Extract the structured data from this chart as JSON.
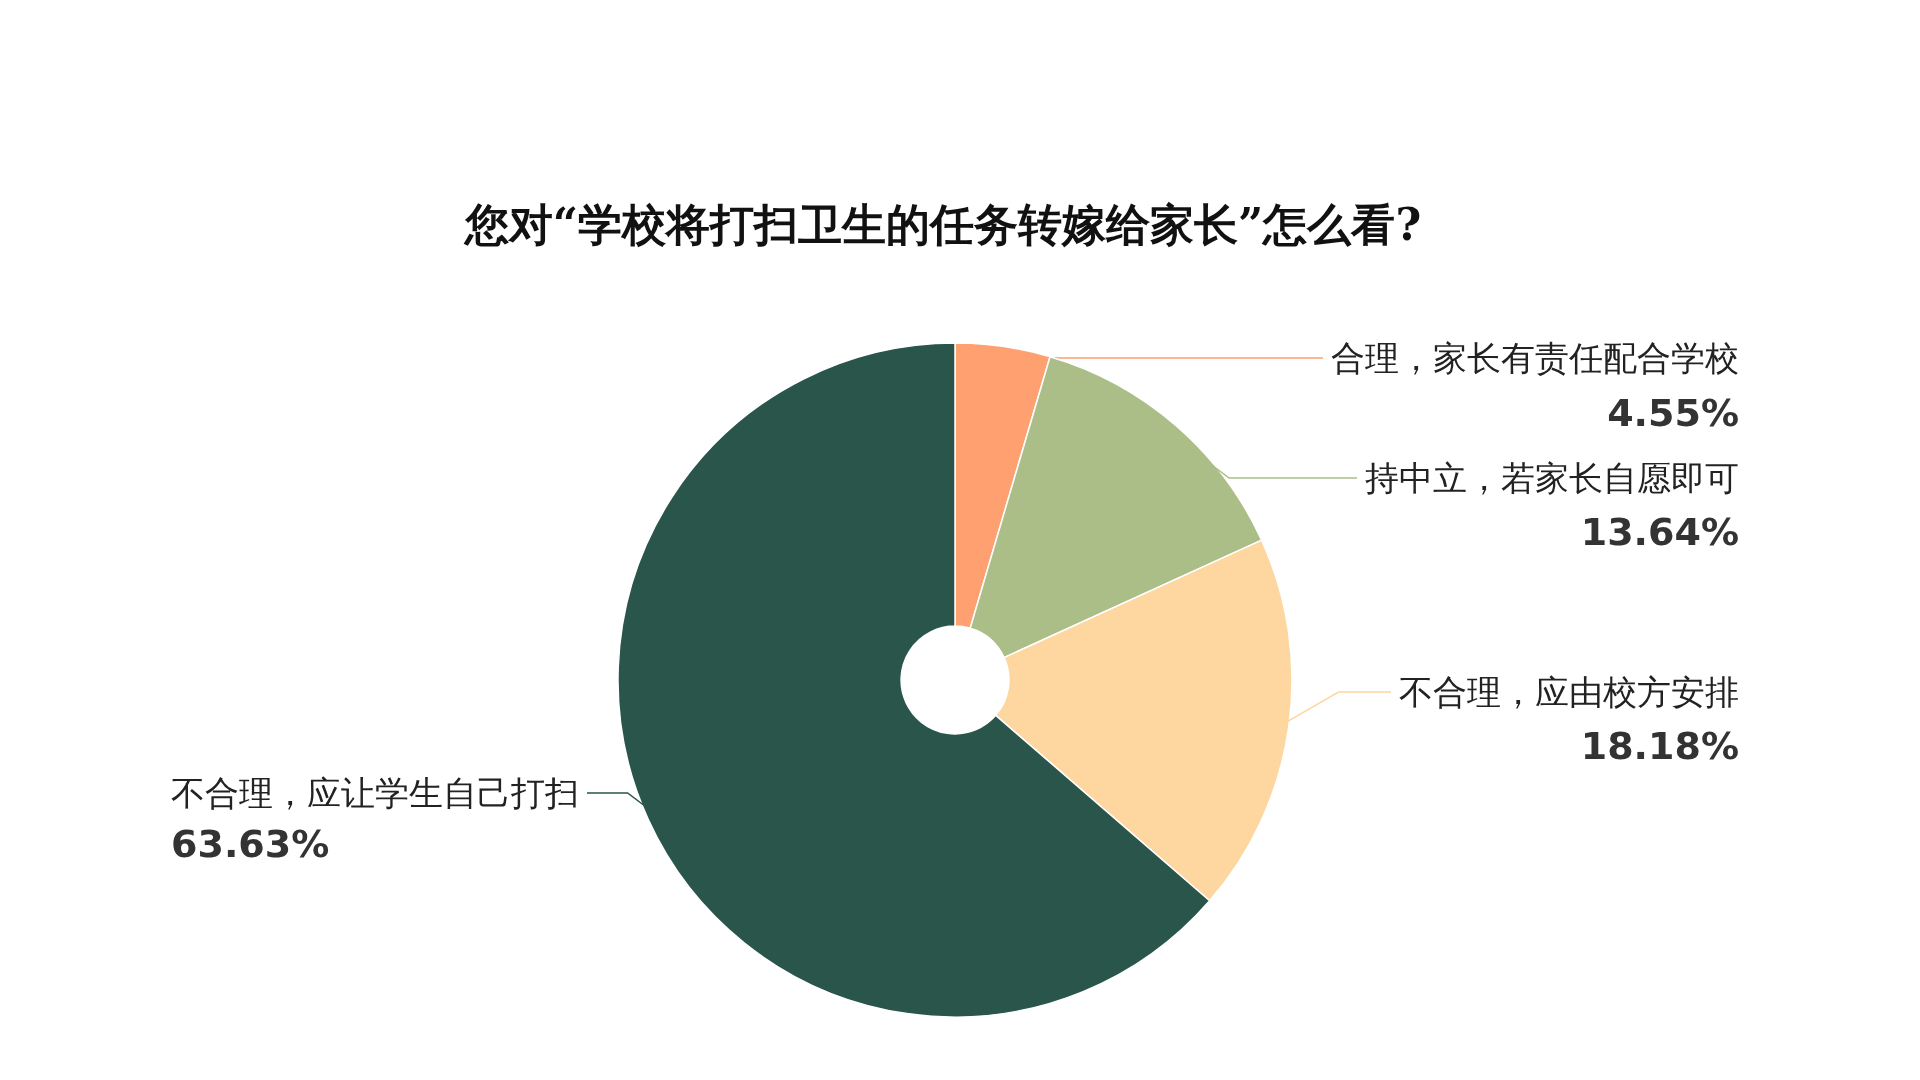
{
  "chart_data": {
    "type": "donut",
    "title": "您对“学校将打扫卫生的任务转嫁给家长”怎么看?",
    "categories": [
      "合理，家长有责任配合学校",
      "持中立，若家长自愿即可",
      "不合理，应由校方安排",
      "不合理，应让学生自己打扫"
    ],
    "values": [
      4.55,
      13.64,
      18.18,
      63.63
    ],
    "colors": [
      "#ffa070",
      "#acbe87",
      "#fdd6a0",
      "#2a554b"
    ],
    "value_labels": [
      "4.55%",
      "13.64%",
      "18.18%",
      "63.63%"
    ]
  }
}
